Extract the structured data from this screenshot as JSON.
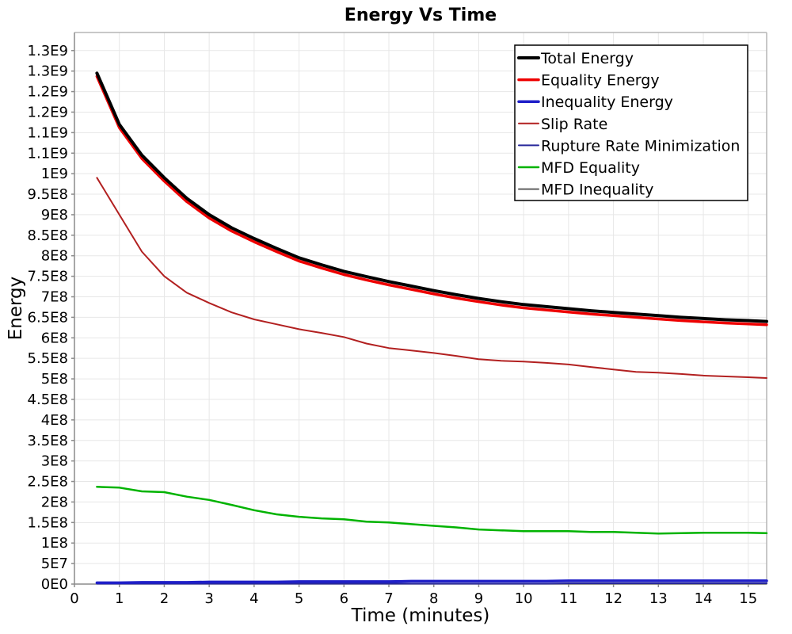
{
  "window": {
    "title": "Energy Vs Time"
  },
  "chart_data": {
    "type": "line",
    "title": "Energy Vs Time",
    "xlabel": "Time (minutes)",
    "ylabel": "Energy",
    "xlim": [
      0,
      15.41
    ],
    "ylim_e8": [
      0,
      13.44
    ],
    "value_scale": 100000000.0,
    "grid": true,
    "legend_position": "top-right",
    "colors": {
      "grid": "#e7e7e7",
      "border_light": "#b5b5b5",
      "axis_dark": "#8c8c8c",
      "legend_border": "#000000",
      "background": "#ffffff"
    },
    "x_ticks": [
      0,
      1,
      2,
      3,
      4,
      5,
      6,
      7,
      8,
      9,
      10,
      11,
      12,
      13,
      14,
      15
    ],
    "y_ticks": [
      {
        "v": 0,
        "label": "0E0"
      },
      {
        "v": 0.5,
        "label": "5E7"
      },
      {
        "v": 1,
        "label": "1E8"
      },
      {
        "v": 1.5,
        "label": "1.5E8"
      },
      {
        "v": 2,
        "label": "2E8"
      },
      {
        "v": 2.5,
        "label": "2.5E8"
      },
      {
        "v": 3,
        "label": "3E8"
      },
      {
        "v": 3.5,
        "label": "3.5E8"
      },
      {
        "v": 4,
        "label": "4E8"
      },
      {
        "v": 4.5,
        "label": "4.5E8"
      },
      {
        "v": 5,
        "label": "5E8"
      },
      {
        "v": 5.5,
        "label": "5.5E8"
      },
      {
        "v": 6,
        "label": "6E8"
      },
      {
        "v": 6.5,
        "label": "6.5E8"
      },
      {
        "v": 7,
        "label": "7E8"
      },
      {
        "v": 7.5,
        "label": "7.5E8"
      },
      {
        "v": 8,
        "label": "8E8"
      },
      {
        "v": 8.5,
        "label": "8.5E8"
      },
      {
        "v": 9,
        "label": "9E8"
      },
      {
        "v": 9.5,
        "label": "9.5E8"
      },
      {
        "v": 10,
        "label": "1E9"
      },
      {
        "v": 10.5,
        "label": "1.1E9"
      },
      {
        "v": 11,
        "label": "1.1E9"
      },
      {
        "v": 11.5,
        "label": "1.2E9"
      },
      {
        "v": 12,
        "label": "1.2E9"
      },
      {
        "v": 12.5,
        "label": "1.3E9"
      },
      {
        "v": 13,
        "label": "1.3E9"
      }
    ],
    "x": [
      0.5,
      1,
      1.5,
      2,
      2.5,
      3,
      3.5,
      4,
      4.5,
      5,
      5.5,
      6,
      6.5,
      7,
      7.5,
      8,
      8.5,
      9,
      9.5,
      10,
      10.5,
      11,
      11.5,
      12,
      12.5,
      13,
      13.5,
      14,
      14.5,
      15,
      15.41
    ],
    "series": [
      {
        "name": "MFD Inequality",
        "slug": "mfd-inequality",
        "color": "#606060",
        "width": 2,
        "values_e8": [
          0.004,
          0.004,
          0.004,
          0.004,
          0.004,
          0.004,
          0.004,
          0.004,
          0.004,
          0.004,
          0.004,
          0.004,
          0.004,
          0.004,
          0.004,
          0.004,
          0.004,
          0.004,
          0.004,
          0.004,
          0.004,
          0.004,
          0.004,
          0.004,
          0.004,
          0.004,
          0.004,
          0.004,
          0.004,
          0.004,
          0.004
        ]
      },
      {
        "name": "Rupture Rate Minimization",
        "slug": "rupture-rate-minimization",
        "color": "#28289b",
        "width": 2,
        "values_e8": [
          0.01,
          0.01,
          0.01,
          0.01,
          0.01,
          0.01,
          0.01,
          0.01,
          0.01,
          0.01,
          0.01,
          0.01,
          0.01,
          0.01,
          0.01,
          0.01,
          0.01,
          0.01,
          0.01,
          0.01,
          0.01,
          0.02,
          0.02,
          0.02,
          0.02,
          0.02,
          0.02,
          0.02,
          0.02,
          0.02,
          0.02
        ]
      },
      {
        "name": "Inequality Energy",
        "slug": "inequality-energy",
        "color": "#1f1fc8",
        "width": 3.5,
        "values_e8": [
          0.03,
          0.03,
          0.04,
          0.04,
          0.04,
          0.05,
          0.05,
          0.05,
          0.05,
          0.06,
          0.06,
          0.06,
          0.06,
          0.06,
          0.07,
          0.07,
          0.07,
          0.07,
          0.07,
          0.07,
          0.07,
          0.08,
          0.08,
          0.08,
          0.08,
          0.08,
          0.08,
          0.08,
          0.08,
          0.08,
          0.08
        ]
      },
      {
        "name": "MFD Equality",
        "slug": "mfd-equality",
        "color": "#00b300",
        "width": 2.5,
        "values_e8": [
          2.37,
          2.35,
          2.26,
          2.24,
          2.13,
          2.05,
          1.93,
          1.8,
          1.7,
          1.64,
          1.6,
          1.58,
          1.52,
          1.5,
          1.46,
          1.42,
          1.38,
          1.33,
          1.31,
          1.29,
          1.29,
          1.29,
          1.27,
          1.27,
          1.25,
          1.23,
          1.24,
          1.25,
          1.25,
          1.25,
          1.24
        ]
      },
      {
        "name": "Slip Rate",
        "slug": "slip-rate",
        "color": "#b22020",
        "width": 2,
        "values_e8": [
          9.9,
          9.0,
          8.1,
          7.5,
          7.1,
          6.85,
          6.62,
          6.45,
          6.33,
          6.21,
          6.12,
          6.02,
          5.86,
          5.75,
          5.69,
          5.63,
          5.56,
          5.48,
          5.44,
          5.42,
          5.39,
          5.35,
          5.29,
          5.23,
          5.17,
          5.15,
          5.12,
          5.08,
          5.06,
          5.04,
          5.02
        ]
      },
      {
        "name": "Equality Energy",
        "slug": "equality-energy",
        "color": "#ee0000",
        "width": 3.5,
        "values_e8": [
          12.37,
          11.12,
          10.37,
          9.82,
          9.32,
          8.92,
          8.6,
          8.34,
          8.1,
          7.87,
          7.7,
          7.54,
          7.41,
          7.29,
          7.18,
          7.07,
          6.97,
          6.88,
          6.8,
          6.73,
          6.68,
          6.63,
          6.58,
          6.54,
          6.5,
          6.46,
          6.42,
          6.39,
          6.36,
          6.34,
          6.32
        ]
      },
      {
        "name": "Total Energy",
        "slug": "total-energy",
        "color": "#000000",
        "width": 4,
        "values_e8": [
          12.45,
          11.2,
          10.45,
          9.9,
          9.4,
          9.0,
          8.68,
          8.42,
          8.18,
          7.95,
          7.78,
          7.62,
          7.49,
          7.37,
          7.26,
          7.15,
          7.05,
          6.96,
          6.88,
          6.81,
          6.76,
          6.71,
          6.66,
          6.62,
          6.58,
          6.54,
          6.5,
          6.47,
          6.44,
          6.42,
          6.4
        ]
      }
    ],
    "legend_order": [
      "Total Energy",
      "Equality Energy",
      "Inequality Energy",
      "Slip Rate",
      "Rupture Rate Minimization",
      "MFD Equality",
      "MFD Inequality"
    ]
  }
}
